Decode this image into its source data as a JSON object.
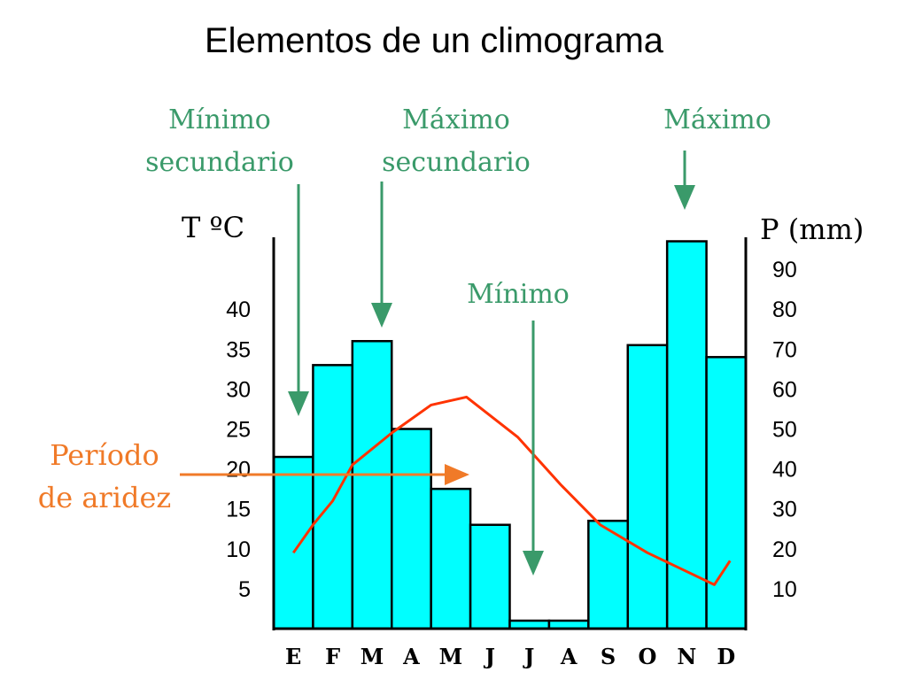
{
  "slide": {
    "title": "Elementos de un climograma"
  },
  "chart_data": {
    "type": "bar",
    "title": "",
    "categories": [
      "E",
      "F",
      "M",
      "A",
      "M",
      "J",
      "J",
      "A",
      "S",
      "O",
      "N",
      "D"
    ],
    "precipitation": {
      "axis_label": "P (mm)",
      "unit": "mm",
      "ylim": [
        0,
        98
      ],
      "ticks": [
        10,
        20,
        30,
        40,
        50,
        60,
        70,
        80,
        90
      ],
      "values": [
        43,
        66,
        72,
        50,
        35,
        26,
        2,
        2,
        27,
        71,
        97,
        68
      ],
      "bar_color": "#00ffff"
    },
    "temperature": {
      "axis_label": "T ºC",
      "unit": "ºC",
      "ylim": [
        0,
        49
      ],
      "ticks": [
        5,
        10,
        15,
        20,
        25,
        30,
        35,
        40
      ],
      "values": [
        9.5,
        13,
        16,
        20.5,
        24.5,
        28,
        29,
        24,
        18,
        13,
        9.5,
        5.5,
        8.5
      ],
      "x_positions": [
        0.5,
        1.0,
        1.5,
        2.0,
        3.0,
        4.0,
        4.9,
        6.2,
        7.3,
        8.3,
        9.5,
        11.2,
        11.6
      ],
      "line_color": "#ff3300"
    },
    "annotations": [
      {
        "id": "minimo-secundario",
        "label": [
          "Mínimo",
          "secundario"
        ],
        "target_month_index": 0
      },
      {
        "id": "maximo-secundario",
        "label": [
          "Máximo",
          "secundario"
        ],
        "target_month_index": 2
      },
      {
        "id": "maximo",
        "label": [
          "Máximo"
        ],
        "target_month_index": 10
      },
      {
        "id": "minimo",
        "label": [
          "Mínimo"
        ],
        "target_month_index": 6
      },
      {
        "id": "periodo-aridez",
        "label": [
          "Período",
          "de aridez"
        ]
      }
    ],
    "annotation_color": "#3a9a6a",
    "aridity_color": "#f07a28"
  }
}
